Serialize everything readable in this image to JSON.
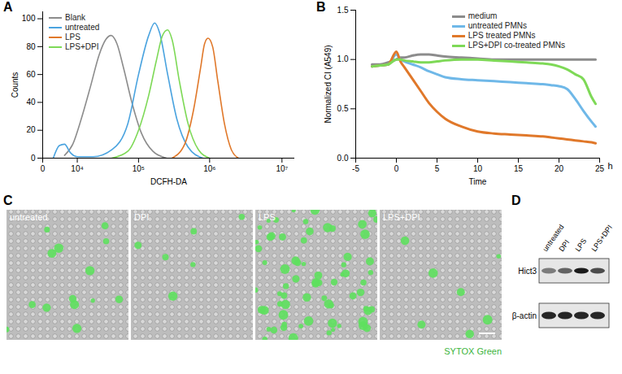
{
  "chart_data": [
    {
      "panel": "A",
      "type": "line",
      "x_label": "DCFH-DA",
      "y_label": "Counts",
      "log": "x",
      "xlim": [
        0,
        15000000
      ],
      "xticks": [
        0,
        {
          "value": 10000,
          "label": "10⁴"
        },
        {
          "value": 100000,
          "label": "10⁵"
        },
        {
          "value": 1000000,
          "label": "10⁶"
        },
        {
          "value": 10000000,
          "label": "10⁷"
        }
      ],
      "ylim": [
        0,
        105
      ],
      "yticks": [
        0,
        20,
        40,
        60,
        80,
        100
      ],
      "legend": "top-left",
      "series": [
        {
          "name": "Blank",
          "color": "#8c8c8c",
          "x": [
            5000,
            8000,
            12000,
            18000,
            25000,
            32000,
            39000,
            48000,
            60000,
            80000,
            110000,
            160000,
            250000
          ],
          "values": [
            2,
            10,
            28,
            52,
            74,
            85,
            88,
            82,
            65,
            40,
            18,
            5,
            0
          ]
        },
        {
          "name": "untreated",
          "color": "#4aa3df",
          "x": [
            2000,
            3500,
            5000,
            7000,
            10000,
            20000,
            40000,
            70000,
            100000,
            140000,
            170000,
            200000,
            260000,
            350000,
            500000,
            800000
          ],
          "values": [
            0,
            9,
            10,
            4,
            1,
            1,
            6,
            25,
            60,
            88,
            97,
            90,
            60,
            28,
            8,
            0
          ]
        },
        {
          "name": "LPS",
          "color": "#e0782a",
          "x": [
            300000,
            450000,
            600000,
            750000,
            850000,
            950000,
            1100000,
            1300000,
            1600000,
            2000000,
            2500000
          ],
          "values": [
            0,
            10,
            35,
            65,
            82,
            86,
            80,
            55,
            25,
            6,
            0
          ]
        },
        {
          "name": "LPS+DPI",
          "color": "#7ed957",
          "x": [
            40000,
            70000,
            100000,
            140000,
            180000,
            220000,
            260000,
            300000,
            380000,
            500000,
            700000,
            1000000
          ],
          "values": [
            0,
            5,
            20,
            45,
            70,
            88,
            92,
            85,
            55,
            25,
            6,
            0
          ]
        }
      ]
    },
    {
      "panel": "B",
      "type": "line",
      "x_label": "Time",
      "x_unit": "h",
      "y_label": "Normalized CI (A549)",
      "xlim": [
        -5,
        25
      ],
      "xticks": [
        -5,
        0,
        5,
        10,
        15,
        20,
        25
      ],
      "ylim": [
        0,
        1.5
      ],
      "yticks": [
        {
          "value": 0,
          "label": "0.0"
        },
        0.5,
        {
          "value": 1,
          "label": "1.0"
        },
        1.5
      ],
      "legend": "top-right",
      "x": [
        -3,
        -2,
        -1,
        0,
        0.5,
        1,
        2,
        3,
        4,
        5,
        6,
        8,
        10,
        12,
        14,
        16,
        18,
        19,
        20,
        21,
        22,
        23,
        24,
        24.5
      ],
      "series": [
        {
          "name": "medium",
          "color": "#8c8c8c",
          "values": [
            0.95,
            0.95,
            0.97,
            1.0,
            1.02,
            1.02,
            1.04,
            1.05,
            1.05,
            1.04,
            1.03,
            1.02,
            1.01,
            1.0,
            1.0,
            1.0,
            1.0,
            1.0,
            1.0,
            1.0,
            1.0,
            1.0,
            1.0,
            1.0
          ]
        },
        {
          "name": "untreated PMNs",
          "color": "#6fb8e8",
          "values": [
            0.93,
            0.94,
            0.95,
            1.05,
            1.0,
            0.98,
            0.95,
            0.92,
            0.88,
            0.85,
            0.82,
            0.8,
            0.79,
            0.78,
            0.77,
            0.76,
            0.75,
            0.74,
            0.73,
            0.7,
            0.6,
            0.48,
            0.37,
            0.32
          ]
        },
        {
          "name": "LPS treated PMNs",
          "color": "#e0782a",
          "values": [
            0.93,
            0.94,
            0.95,
            1.08,
            0.98,
            0.92,
            0.8,
            0.68,
            0.56,
            0.47,
            0.4,
            0.32,
            0.27,
            0.25,
            0.24,
            0.23,
            0.22,
            0.21,
            0.2,
            0.19,
            0.18,
            0.17,
            0.16,
            0.15
          ]
        },
        {
          "name": "LPS+DPI co-treated PMNs",
          "color": "#7ed957",
          "values": [
            0.93,
            0.94,
            0.95,
            1.0,
            1.0,
            0.99,
            0.98,
            0.97,
            0.97,
            0.98,
            0.99,
            1.0,
            1.0,
            0.99,
            0.98,
            0.97,
            0.96,
            0.95,
            0.93,
            0.9,
            0.85,
            0.8,
            0.62,
            0.55
          ]
        }
      ]
    }
  ],
  "panel_c": {
    "panel": "C",
    "images": [
      "untreated",
      "DPI",
      "LPS",
      "LPS+DPI"
    ],
    "stain": "SYTOX Green"
  },
  "panel_d": {
    "panel": "D",
    "lanes": [
      "untreated",
      "DPI",
      "LPS",
      "LPS+DPI"
    ],
    "bands": [
      "Hict3",
      "β-actin"
    ]
  }
}
